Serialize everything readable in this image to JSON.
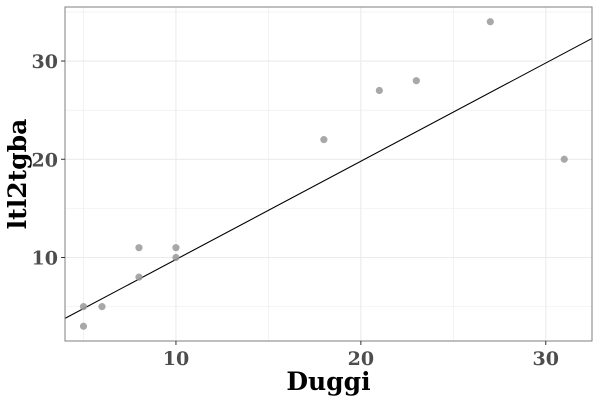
{
  "chart_data": {
    "type": "scatter",
    "xlabel": "Duggi",
    "ylabel": "ltl2tgba",
    "xlim": [
      4.0,
      32.5
    ],
    "ylim": [
      1.5,
      35.5
    ],
    "x_ticks": [
      10,
      20,
      30
    ],
    "y_ticks": [
      10,
      20,
      30
    ],
    "x_minor_ticks": [
      5,
      15,
      25
    ],
    "y_minor_ticks": [
      5,
      15,
      25,
      35
    ],
    "grid": true,
    "points": [
      {
        "x": 5,
        "y": 5
      },
      {
        "x": 5,
        "y": 3
      },
      {
        "x": 6,
        "y": 5
      },
      {
        "x": 8,
        "y": 11
      },
      {
        "x": 8,
        "y": 8
      },
      {
        "x": 10,
        "y": 11
      },
      {
        "x": 10,
        "y": 10
      },
      {
        "x": 18,
        "y": 22
      },
      {
        "x": 21,
        "y": 27
      },
      {
        "x": 23,
        "y": 28
      },
      {
        "x": 27,
        "y": 34
      },
      {
        "x": 31,
        "y": 20
      }
    ],
    "fit_line": {
      "x": [
        4.0,
        32.5
      ],
      "y": [
        3.8,
        32.3
      ]
    },
    "colors": {
      "point": "#999999",
      "line": "#000000",
      "grid": "#ebebeb",
      "panel_border": "#7f7f7f",
      "tick_text": "#4d4d4d"
    }
  }
}
